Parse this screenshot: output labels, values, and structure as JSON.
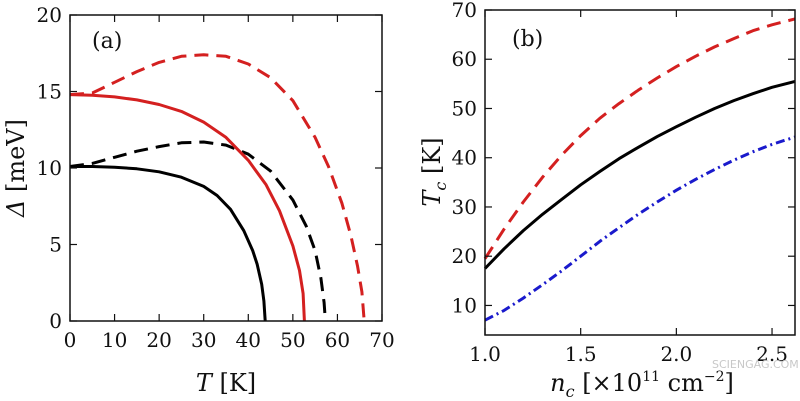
{
  "watermark": "SCIENGAG.COM",
  "chart_data": [
    {
      "panel_label": "(a)",
      "type": "line",
      "xlabel": {
        "symbol": "T",
        "unit": " [K]"
      },
      "ylabel": {
        "symbol": "Δ",
        "unit": " [meV]"
      },
      "xlim": [
        0,
        70
      ],
      "ylim": [
        0,
        20
      ],
      "xticks": [
        0,
        10,
        20,
        30,
        40,
        50,
        60,
        70
      ],
      "yticks": [
        0,
        5,
        10,
        15,
        20
      ],
      "series": [
        {
          "color": "#000000",
          "dash": "solid",
          "points": [
            [
              0,
              10.1
            ],
            [
              5,
              10.1
            ],
            [
              10,
              10.05
            ],
            [
              15,
              9.95
            ],
            [
              20,
              9.75
            ],
            [
              25,
              9.4
            ],
            [
              30,
              8.8
            ],
            [
              33,
              8.2
            ],
            [
              36,
              7.3
            ],
            [
              39,
              5.9
            ],
            [
              41,
              4.6
            ],
            [
              42,
              3.7
            ],
            [
              43,
              2.4
            ],
            [
              43.5,
              1.3
            ],
            [
              43.8,
              0
            ]
          ]
        },
        {
          "color": "#000000",
          "dash": "dashed",
          "points": [
            [
              0,
              10.1
            ],
            [
              5,
              10.3
            ],
            [
              10,
              10.7
            ],
            [
              15,
              11.1
            ],
            [
              20,
              11.4
            ],
            [
              25,
              11.65
            ],
            [
              30,
              11.7
            ],
            [
              35,
              11.5
            ],
            [
              40,
              10.9
            ],
            [
              45,
              9.8
            ],
            [
              50,
              7.9
            ],
            [
              53,
              6.2
            ],
            [
              55,
              4.6
            ],
            [
              56.3,
              2.8
            ],
            [
              57,
              1.2
            ],
            [
              57.3,
              0
            ]
          ]
        },
        {
          "color": "#d42020",
          "dash": "solid",
          "points": [
            [
              0,
              14.8
            ],
            [
              5,
              14.75
            ],
            [
              10,
              14.65
            ],
            [
              15,
              14.45
            ],
            [
              20,
              14.15
            ],
            [
              25,
              13.7
            ],
            [
              30,
              13.0
            ],
            [
              35,
              12.0
            ],
            [
              40,
              10.5
            ],
            [
              44,
              8.9
            ],
            [
              47,
              7.2
            ],
            [
              50,
              4.9
            ],
            [
              51.5,
              3.3
            ],
            [
              52.3,
              1.8
            ],
            [
              52.6,
              0
            ]
          ]
        },
        {
          "color": "#d42020",
          "dash": "dashed",
          "points": [
            [
              0,
              14.8
            ],
            [
              5,
              14.9
            ],
            [
              10,
              15.6
            ],
            [
              15,
              16.3
            ],
            [
              20,
              16.9
            ],
            [
              25,
              17.3
            ],
            [
              30,
              17.4
            ],
            [
              35,
              17.3
            ],
            [
              40,
              16.8
            ],
            [
              45,
              15.9
            ],
            [
              50,
              14.4
            ],
            [
              55,
              12.0
            ],
            [
              58,
              10.1
            ],
            [
              61,
              7.7
            ],
            [
              63,
              5.6
            ],
            [
              64.5,
              3.6
            ],
            [
              65.5,
              1.9
            ],
            [
              66,
              0
            ]
          ]
        }
      ]
    },
    {
      "panel_label": "(b)",
      "type": "line",
      "xlabel": {
        "symbol": "n",
        "sub": "c",
        "unit": " [×10",
        "exp": "11",
        "unit2": " cm",
        "exp2": "−2",
        "unit3": "]"
      },
      "ylabel": {
        "symbol": "T",
        "sub": "c",
        "unit": " [K]"
      },
      "xlim": [
        1.0,
        2.62
      ],
      "ylim": [
        4,
        70
      ],
      "xticks": [
        1.0,
        1.5,
        2.0,
        2.5
      ],
      "xtick_labels": [
        "1.0",
        "1.5",
        "2.0",
        "2.5"
      ],
      "yticks": [
        10,
        20,
        30,
        40,
        50,
        60,
        70
      ],
      "series": [
        {
          "color": "#d42020",
          "dash": "dashed",
          "points": [
            [
              1.0,
              19.5
            ],
            [
              1.1,
              25.5
            ],
            [
              1.2,
              31
            ],
            [
              1.3,
              36
            ],
            [
              1.4,
              40.5
            ],
            [
              1.5,
              44.5
            ],
            [
              1.6,
              48
            ],
            [
              1.7,
              51
            ],
            [
              1.8,
              53.7
            ],
            [
              1.9,
              56.2
            ],
            [
              2.0,
              58.5
            ],
            [
              2.1,
              60.6
            ],
            [
              2.2,
              62.5
            ],
            [
              2.3,
              64.2
            ],
            [
              2.4,
              65.8
            ],
            [
              2.5,
              67.0
            ],
            [
              2.62,
              68.2
            ]
          ]
        },
        {
          "color": "#000000",
          "dash": "solid",
          "points": [
            [
              1.0,
              17.5
            ],
            [
              1.1,
              21.5
            ],
            [
              1.2,
              25.2
            ],
            [
              1.3,
              28.5
            ],
            [
              1.4,
              31.5
            ],
            [
              1.5,
              34.5
            ],
            [
              1.6,
              37.2
            ],
            [
              1.7,
              39.8
            ],
            [
              1.8,
              42.1
            ],
            [
              1.9,
              44.3
            ],
            [
              2.0,
              46.3
            ],
            [
              2.1,
              48.2
            ],
            [
              2.2,
              50
            ],
            [
              2.3,
              51.6
            ],
            [
              2.4,
              53.0
            ],
            [
              2.5,
              54.3
            ],
            [
              2.62,
              55.5
            ]
          ]
        },
        {
          "color": "#1a1acc",
          "dash": "dashdot",
          "points": [
            [
              1.0,
              7
            ],
            [
              1.1,
              9
            ],
            [
              1.2,
              11.5
            ],
            [
              1.3,
              14.2
            ],
            [
              1.4,
              17.0
            ],
            [
              1.5,
              20.0
            ],
            [
              1.6,
              23.0
            ],
            [
              1.7,
              25.8
            ],
            [
              1.8,
              28.5
            ],
            [
              1.9,
              31.0
            ],
            [
              2.0,
              33.4
            ],
            [
              2.1,
              35.6
            ],
            [
              2.2,
              37.6
            ],
            [
              2.3,
              39.5
            ],
            [
              2.4,
              41.2
            ],
            [
              2.5,
              42.7
            ],
            [
              2.62,
              44.2
            ]
          ]
        }
      ]
    }
  ]
}
